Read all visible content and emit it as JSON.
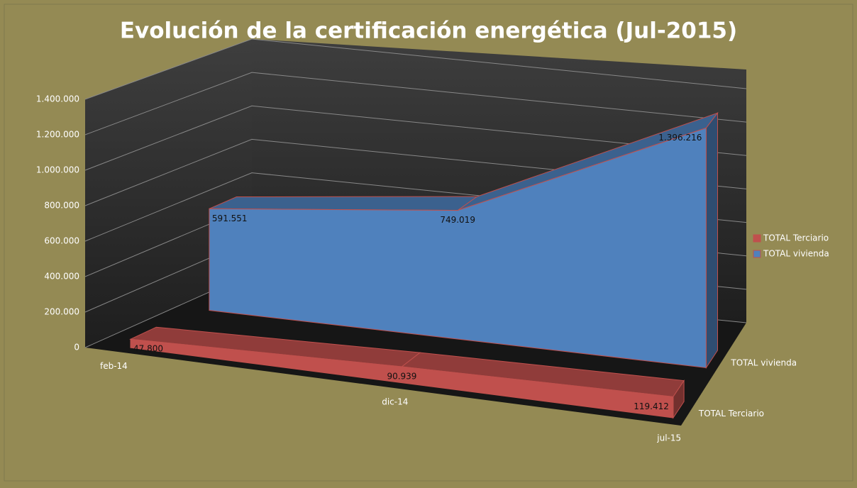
{
  "chart_data": {
    "type": "area3d",
    "title": "Evolución de la certificación energética (Jul-2015)",
    "categories": [
      "feb-14",
      "dic-14",
      "jul-15"
    ],
    "series": [
      {
        "name": "TOTAL Terciario",
        "color": "#c0504d",
        "values": [
          47800,
          90939,
          119412
        ],
        "value_labels": [
          "47.800",
          "90.939",
          "119.412"
        ]
      },
      {
        "name": "TOTAL vivienda",
        "color": "#4f81bd",
        "values": [
          591551,
          749019,
          1396216
        ],
        "value_labels": [
          "591.551",
          "749.019",
          "1.396.216"
        ]
      }
    ],
    "ylim": [
      0,
      1400000
    ],
    "yticks": [
      0,
      {
        "value": 200000,
        "label": "200.000"
      },
      {
        "value": 400000,
        "label": "400.000"
      },
      {
        "value": 600000,
        "label": "600.000"
      },
      {
        "value": 800000,
        "label": "800.000"
      },
      {
        "value": 1000000,
        "label": "1.000.000"
      },
      {
        "value": 1200000,
        "label": "1.200.000"
      },
      {
        "value": 1400000,
        "label": "1.400.000"
      }
    ],
    "grid": true,
    "legend": "right"
  }
}
